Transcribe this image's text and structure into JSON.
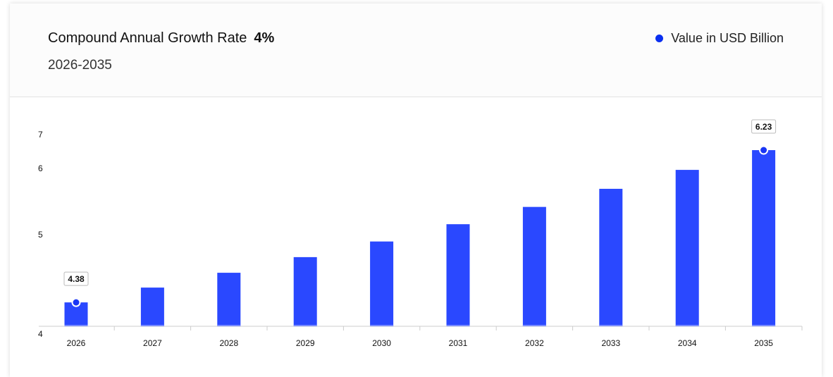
{
  "header": {
    "title": "Compound Annual Growth Rate",
    "cagr": "4%",
    "period": "2026-2035",
    "legend": "Value in USD Billion"
  },
  "colors": {
    "bar": "#2a48ff",
    "legend_dot": "#0a2ff0"
  },
  "chart_data": {
    "type": "bar",
    "categories": [
      "2026",
      "2027",
      "2028",
      "2029",
      "2030",
      "2031",
      "2032",
      "2033",
      "2034",
      "2035"
    ],
    "series": [
      {
        "name": "Value in USD Billion",
        "values": [
          4.38,
          4.56,
          4.74,
          4.93,
          5.12,
          5.33,
          5.54,
          5.76,
          5.99,
          6.23
        ]
      }
    ],
    "y_ticks": [
      "7",
      "6",
      "5",
      "4"
    ],
    "data_labels": [
      {
        "category": "2026",
        "text": "4.38"
      },
      {
        "category": "2035",
        "text": "6.23"
      }
    ],
    "ylim": [
      4,
      7
    ],
    "grid": false,
    "legend": "top-right"
  }
}
